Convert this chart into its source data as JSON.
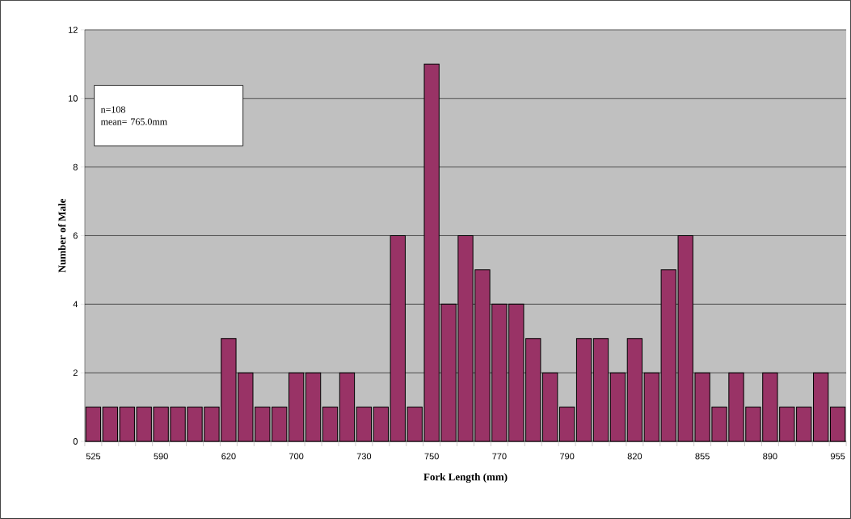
{
  "chart_data": {
    "type": "bar",
    "xlabel": "Fork Length (mm)",
    "ylabel": "Number of Male",
    "categories": [
      "525",
      null,
      null,
      null,
      "590",
      null,
      null,
      null,
      "620",
      null,
      null,
      null,
      "700",
      null,
      null,
      null,
      "730",
      null,
      null,
      null,
      "750",
      null,
      null,
      null,
      "770",
      null,
      null,
      null,
      "790",
      null,
      null,
      null,
      "820",
      null,
      null,
      null,
      "855",
      null,
      null,
      null,
      "890",
      null,
      null,
      null,
      "955"
    ],
    "values": [
      1,
      1,
      1,
      1,
      1,
      1,
      1,
      1,
      3,
      2,
      1,
      1,
      2,
      2,
      1,
      2,
      1,
      1,
      6,
      1,
      11,
      4,
      6,
      5,
      4,
      4,
      3,
      2,
      1,
      3,
      3,
      2,
      3,
      2,
      5,
      6,
      2,
      1,
      2,
      1,
      2,
      1,
      1,
      2,
      1
    ],
    "color": "#993366",
    "ylim": [
      0,
      12
    ],
    "yticks": [
      0,
      2,
      4,
      6,
      8,
      10,
      12
    ],
    "grid": "y",
    "annotations": [
      "n=108",
      "mean= 765.0mm"
    ]
  }
}
